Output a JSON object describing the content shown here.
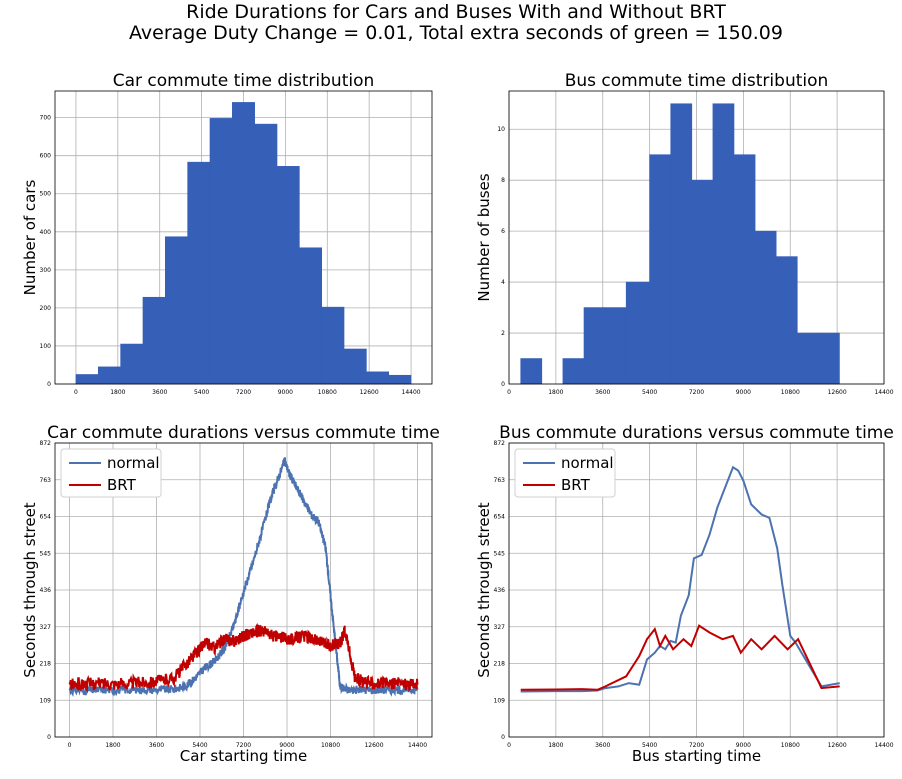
{
  "figure": {
    "title_line1": "Ride Durations for Cars and Buses With and Without BRT",
    "title_line2": "Average Duty Change = 0.01, Total extra seconds of green = 150.09"
  },
  "colors": {
    "bar": "#365fb7",
    "normal": "#4c72b0",
    "brt": "#c00000"
  },
  "chart_data": [
    {
      "type": "bar",
      "title": "Car commute time distribution",
      "xlabel": "",
      "ylabel": "Number of cars",
      "xlim": [
        -900,
        15300
      ],
      "ylim": [
        0,
        770
      ],
      "xticks": [
        0,
        1800,
        3600,
        5400,
        7200,
        9000,
        10800,
        12600,
        14400
      ],
      "yticks": [
        0,
        100,
        200,
        300,
        400,
        500,
        600,
        700
      ],
      "bin_edges": [
        0,
        960,
        1920,
        2880,
        3840,
        4800,
        5760,
        6720,
        7680,
        8640,
        9600,
        10560,
        11520,
        12480,
        13440,
        14400
      ],
      "values": [
        25,
        45,
        105,
        228,
        387,
        583,
        698,
        740,
        683,
        572,
        358,
        202,
        92,
        32,
        23
      ]
    },
    {
      "type": "bar",
      "title": "Bus commute time distribution",
      "xlabel": "",
      "ylabel": "Number of buses",
      "xlim": [
        0,
        14400
      ],
      "ylim": [
        0,
        11.5
      ],
      "xticks": [
        0,
        1800,
        3600,
        5400,
        7200,
        9000,
        10800,
        12600,
        14400
      ],
      "yticks": [
        0,
        2,
        4,
        6,
        8,
        10
      ],
      "bin_edges": [
        450,
        1260,
        2070,
        2880,
        3690,
        4500,
        5400,
        6210,
        7020,
        7830,
        8640,
        9450,
        10260,
        11070,
        11880,
        12690
      ],
      "values": [
        1,
        0,
        1,
        3,
        3,
        4,
        9,
        11,
        8,
        11,
        9,
        6,
        5,
        2,
        2
      ]
    },
    {
      "type": "line",
      "title": "Car commute durations versus commute time",
      "xlabel": "Car starting time",
      "ylabel": "Seconds through street",
      "xlim": [
        -600,
        15000
      ],
      "ylim": [
        0,
        872
      ],
      "xticks": [
        0,
        1800,
        3600,
        5400,
        7200,
        9000,
        10800,
        12600,
        14400
      ],
      "yticks": [
        0,
        109,
        218,
        327,
        436,
        545,
        654,
        763,
        872
      ],
      "legend": "top-left",
      "series": [
        {
          "name": "normal",
          "x": [
            0,
            720,
            1440,
            2160,
            2880,
            3600,
            4320,
            4800,
            5200,
            5600,
            6000,
            6400,
            6800,
            7200,
            7600,
            8000,
            8300,
            8600,
            8900,
            9100,
            9400,
            9700,
            10000,
            10300,
            10600,
            10800,
            11000,
            11200,
            11500,
            12000,
            12600,
            13200,
            13800,
            14400
          ],
          "y": [
            140,
            138,
            140,
            139,
            141,
            140,
            142,
            150,
            175,
            205,
            225,
            260,
            330,
            430,
            520,
            620,
            700,
            760,
            820,
            780,
            740,
            700,
            660,
            640,
            560,
            420,
            280,
            150,
            140,
            140,
            139,
            140,
            140,
            140
          ],
          "noise": 12
        },
        {
          "name": "BRT",
          "x": [
            0,
            720,
            1440,
            2160,
            2880,
            3600,
            4320,
            4800,
            5200,
            5600,
            6000,
            6400,
            6800,
            7200,
            7600,
            8000,
            8400,
            8800,
            9200,
            9600,
            10000,
            10400,
            10800,
            11200,
            11400,
            11800,
            12200,
            12600,
            13200,
            13800,
            14400
          ],
          "y": [
            155,
            158,
            160,
            158,
            162,
            165,
            175,
            215,
            245,
            280,
            265,
            290,
            285,
            300,
            310,
            315,
            300,
            295,
            290,
            300,
            295,
            280,
            270,
            280,
            315,
            180,
            160,
            160,
            158,
            160,
            155
          ],
          "noise": 18
        }
      ]
    },
    {
      "type": "line",
      "title": "Bus commute durations versus commute time",
      "xlabel": "Bus starting time",
      "ylabel": "Seconds through street",
      "xlim": [
        0,
        14400
      ],
      "ylim": [
        0,
        872
      ],
      "xticks": [
        0,
        1800,
        3600,
        5400,
        7200,
        9000,
        10800,
        12600,
        14400
      ],
      "yticks": [
        0,
        109,
        218,
        327,
        436,
        545,
        654,
        763,
        872
      ],
      "legend": "top-left",
      "series": [
        {
          "name": "normal",
          "x": [
            450,
            1800,
            2800,
            3400,
            3700,
            4200,
            4600,
            5000,
            5300,
            5600,
            5800,
            6000,
            6200,
            6400,
            6600,
            6900,
            7100,
            7400,
            7700,
            8000,
            8300,
            8600,
            8800,
            9000,
            9300,
            9700,
            10000,
            10300,
            10500,
            10800,
            11000,
            12000,
            12700
          ],
          "y": [
            135,
            136,
            136,
            138,
            145,
            150,
            160,
            155,
            230,
            250,
            270,
            260,
            285,
            280,
            360,
            420,
            530,
            540,
            600,
            680,
            740,
            800,
            790,
            760,
            690,
            660,
            650,
            560,
            450,
            300,
            280,
            150,
            160
          ],
          "noise": 0
        },
        {
          "name": "BRT",
          "x": [
            450,
            1800,
            2800,
            3400,
            3700,
            4500,
            5000,
            5300,
            5600,
            5800,
            6000,
            6300,
            6700,
            7000,
            7300,
            7700,
            8200,
            8600,
            8900,
            9300,
            9700,
            10200,
            10700,
            11100,
            12000,
            12700
          ],
          "y": [
            140,
            141,
            142,
            140,
            150,
            180,
            240,
            290,
            320,
            270,
            300,
            260,
            290,
            270,
            330,
            310,
            290,
            300,
            250,
            290,
            260,
            300,
            260,
            290,
            145,
            150
          ],
          "noise": 0
        }
      ]
    }
  ]
}
